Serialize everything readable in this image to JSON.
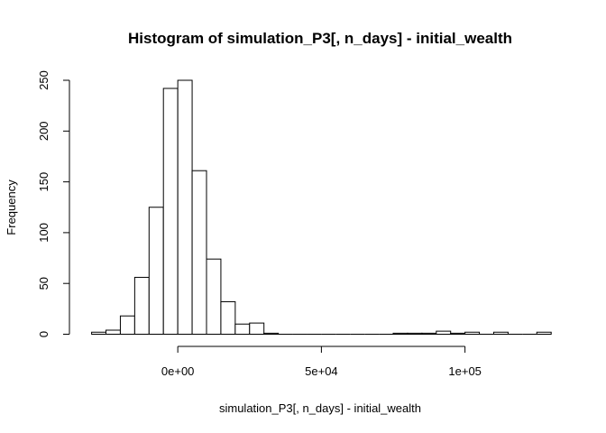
{
  "chart_data": {
    "type": "bar",
    "title": "Histogram of simulation_P3[, n_days] - initial_wealth",
    "xlabel": "simulation_P3[, n_days] - initial_wealth",
    "ylabel": "Frequency",
    "bin_width": 5000,
    "bins": [
      {
        "start": -30000,
        "end": -25000,
        "count": 2
      },
      {
        "start": -25000,
        "end": -20000,
        "count": 4
      },
      {
        "start": -20000,
        "end": -15000,
        "count": 18
      },
      {
        "start": -15000,
        "end": -10000,
        "count": 56
      },
      {
        "start": -10000,
        "end": -5000,
        "count": 125
      },
      {
        "start": -5000,
        "end": 0,
        "count": 242
      },
      {
        "start": 0,
        "end": 5000,
        "count": 250
      },
      {
        "start": 5000,
        "end": 10000,
        "count": 161
      },
      {
        "start": 10000,
        "end": 15000,
        "count": 74
      },
      {
        "start": 15000,
        "end": 20000,
        "count": 32
      },
      {
        "start": 20000,
        "end": 25000,
        "count": 10
      },
      {
        "start": 25000,
        "end": 30000,
        "count": 11
      },
      {
        "start": 30000,
        "end": 35000,
        "count": 1
      },
      {
        "start": 35000,
        "end": 40000,
        "count": 0
      },
      {
        "start": 40000,
        "end": 45000,
        "count": 0
      },
      {
        "start": 45000,
        "end": 50000,
        "count": 0
      },
      {
        "start": 50000,
        "end": 55000,
        "count": 0
      },
      {
        "start": 55000,
        "end": 60000,
        "count": 0
      },
      {
        "start": 60000,
        "end": 65000,
        "count": 0
      },
      {
        "start": 65000,
        "end": 70000,
        "count": 0
      },
      {
        "start": 70000,
        "end": 75000,
        "count": 0
      },
      {
        "start": 75000,
        "end": 80000,
        "count": 1
      },
      {
        "start": 80000,
        "end": 85000,
        "count": 1
      },
      {
        "start": 85000,
        "end": 90000,
        "count": 1
      },
      {
        "start": 90000,
        "end": 95000,
        "count": 3
      },
      {
        "start": 95000,
        "end": 100000,
        "count": 1
      },
      {
        "start": 100000,
        "end": 105000,
        "count": 2
      },
      {
        "start": 105000,
        "end": 110000,
        "count": 0
      },
      {
        "start": 110000,
        "end": 115000,
        "count": 2
      },
      {
        "start": 115000,
        "end": 120000,
        "count": 0
      },
      {
        "start": 120000,
        "end": 125000,
        "count": 0
      },
      {
        "start": 125000,
        "end": 130000,
        "count": 2
      }
    ],
    "xlim": [
      -30000,
      130000
    ],
    "ylim": [
      0,
      250
    ],
    "x_ticks": [
      {
        "value": 0,
        "label": "0e+00"
      },
      {
        "value": 50000,
        "label": "5e+04"
      },
      {
        "value": 100000,
        "label": "1e+05"
      }
    ],
    "y_ticks": [
      {
        "value": 0,
        "label": "0"
      },
      {
        "value": 50,
        "label": "50"
      },
      {
        "value": 100,
        "label": "100"
      },
      {
        "value": 150,
        "label": "150"
      },
      {
        "value": 200,
        "label": "200"
      },
      {
        "value": 250,
        "label": "250"
      }
    ],
    "grid": false,
    "legend": "none",
    "colors": {
      "bar_fill": "#ffffff",
      "bar_stroke": "#000000",
      "text": "#000000",
      "background": "#ffffff"
    }
  }
}
